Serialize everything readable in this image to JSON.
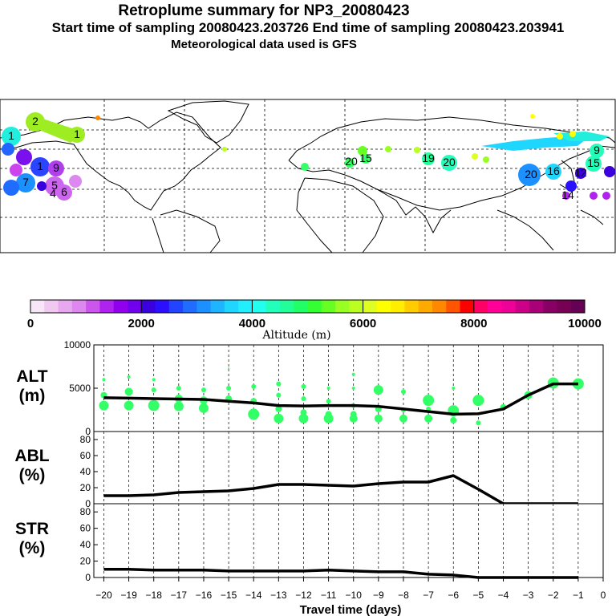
{
  "header": {
    "title": "Retroplume summary for NP3_20080423",
    "time_line": "Start time of sampling 20080423.203726     End time of sampling 20080423.203941",
    "met_line": "Meteorological data used is GFS"
  },
  "colorbar": {
    "label": "Altitude (m)",
    "ticks": [
      "0",
      "2000",
      "4000",
      "6000",
      "8000",
      "10000"
    ],
    "range": [
      0,
      10000
    ],
    "colors": [
      "#f7e6f7",
      "#f0c8f0",
      "#e8a8f0",
      "#dd88ee",
      "#cc55ee",
      "#b022ee",
      "#9000ee",
      "#7000ee",
      "#3a00dd",
      "#2a10ff",
      "#2244ff",
      "#1f6cff",
      "#1d90ff",
      "#1fb4ff",
      "#1fd6ff",
      "#22eeff",
      "#22ffee",
      "#22ffbb",
      "#22ff99",
      "#22ff66",
      "#33ff33",
      "#66ff22",
      "#99ff22",
      "#bbff22",
      "#ddff22",
      "#ffff00",
      "#ffee00",
      "#ffcc00",
      "#ffaa00",
      "#ff8800",
      "#ff5500",
      "#ff0000",
      "#ff0066",
      "#ff0099",
      "#ee0099",
      "#cc0088",
      "#aa0077",
      "#880066",
      "#770055",
      "#660055"
    ]
  },
  "map_labels": [
    {
      "t": "2",
      "c": "#9eed22"
    },
    {
      "t": "1",
      "c": "#9eed22"
    },
    {
      "t": "1",
      "c": "#22eedd"
    },
    {
      "t": "9",
      "c": "#b040ee"
    },
    {
      "t": "5",
      "c": "#cc66ee"
    },
    {
      "t": "6",
      "c": "#cc66ee"
    },
    {
      "t": "1",
      "c": "#2a60ff"
    },
    {
      "t": "7",
      "c": "#1fb4ff"
    },
    {
      "t": "4",
      "c": "#b040ee"
    },
    {
      "t": "19",
      "c": "#22ff99"
    },
    {
      "t": "20",
      "c": "#22ff99"
    },
    {
      "t": "20",
      "c": "#22ff99"
    },
    {
      "t": "15",
      "c": "#22ff99"
    },
    {
      "t": "20",
      "c": "#1d90ff"
    },
    {
      "t": "16",
      "c": "#1fd6ff"
    },
    {
      "t": "15",
      "c": "#1fd6ff"
    },
    {
      "t": "9",
      "c": "#22ffbb"
    },
    {
      "t": "12",
      "c": "#3a00dd"
    },
    {
      "t": "14",
      "c": "#b022ee"
    }
  ],
  "chart_data": [
    {
      "panel": "ALT",
      "type": "line",
      "ylabel": [
        "ALT",
        "(m)"
      ],
      "ylim": [
        0,
        10000
      ],
      "yticks": [
        "10000",
        "5000",
        "0"
      ],
      "x": [
        -20,
        -19,
        -18,
        -17,
        -16,
        -15,
        -14,
        -13,
        -12,
        -11,
        -10,
        -9,
        -8,
        -7,
        -6,
        -5,
        -4,
        -3,
        -2,
        -1
      ],
      "values": [
        3900,
        3850,
        3800,
        3750,
        3700,
        3500,
        3300,
        3000,
        2950,
        3000,
        3000,
        2900,
        2600,
        2300,
        2000,
        2050,
        2600,
        4200,
        5500,
        5500
      ],
      "scatter_color": "#33ff66",
      "scatter": [
        [
          -20,
          6000,
          2
        ],
        [
          -20,
          3000,
          6
        ],
        [
          -20,
          4200,
          4
        ],
        [
          -19,
          6300,
          2
        ],
        [
          -19,
          4600,
          5
        ],
        [
          -19,
          3000,
          6
        ],
        [
          -18,
          6000,
          2
        ],
        [
          -18,
          4800,
          3
        ],
        [
          -18,
          3000,
          7
        ],
        [
          -17,
          5000,
          3
        ],
        [
          -17,
          3800,
          5
        ],
        [
          -17,
          2900,
          6
        ],
        [
          -16,
          4800,
          3
        ],
        [
          -16,
          3600,
          5
        ],
        [
          -16,
          2700,
          6
        ],
        [
          -15,
          7300,
          1
        ],
        [
          -15,
          5000,
          3
        ],
        [
          -15,
          3800,
          4
        ],
        [
          -14,
          5200,
          3
        ],
        [
          -14,
          3500,
          4
        ],
        [
          -14,
          2000,
          7
        ],
        [
          -13,
          5500,
          3
        ],
        [
          -13,
          4200,
          3
        ],
        [
          -13,
          2600,
          4
        ],
        [
          -13,
          1500,
          6
        ],
        [
          -12,
          5200,
          3
        ],
        [
          -12,
          3800,
          3
        ],
        [
          -12,
          2200,
          4
        ],
        [
          -12,
          1500,
          6
        ],
        [
          -11,
          5000,
          2
        ],
        [
          -11,
          3500,
          3
        ],
        [
          -11,
          2000,
          4
        ],
        [
          -11,
          1500,
          6
        ],
        [
          -10,
          6600,
          2
        ],
        [
          -10,
          5000,
          2
        ],
        [
          -10,
          3000,
          3
        ],
        [
          -10,
          2000,
          4
        ],
        [
          -10,
          1500,
          5
        ],
        [
          -9,
          4800,
          6
        ],
        [
          -9,
          2600,
          4
        ],
        [
          -9,
          1500,
          5
        ],
        [
          -8,
          4600,
          3
        ],
        [
          -8,
          2500,
          3
        ],
        [
          -8,
          1500,
          5
        ],
        [
          -7,
          3600,
          7
        ],
        [
          -7,
          2600,
          3
        ],
        [
          -7,
          1500,
          5
        ],
        [
          -6,
          5000,
          2
        ],
        [
          -6,
          2400,
          7
        ],
        [
          -6,
          1300,
          4
        ],
        [
          -5,
          3600,
          7
        ],
        [
          -5,
          1000,
          3
        ],
        [
          -4,
          2800,
          4
        ],
        [
          -3,
          4200,
          5
        ],
        [
          -2,
          5600,
          7
        ],
        [
          -1,
          5500,
          7
        ]
      ]
    },
    {
      "panel": "ABL",
      "type": "line",
      "ylabel": [
        "ABL",
        "(%)"
      ],
      "ylim": [
        0,
        90
      ],
      "yticks": [
        "80",
        "60",
        "40",
        "20",
        "0"
      ],
      "x": [
        -20,
        -19,
        -18,
        -17,
        -16,
        -15,
        -14,
        -13,
        -12,
        -11,
        -10,
        -9,
        -8,
        -7,
        -6,
        -5,
        -4,
        -3,
        -2,
        -1
      ],
      "values": [
        10,
        10,
        11,
        14,
        15,
        16,
        19,
        24,
        24,
        23,
        22,
        25,
        27,
        27,
        35,
        18,
        0,
        0,
        0,
        0
      ]
    },
    {
      "panel": "STR",
      "type": "line",
      "ylabel": [
        "STR",
        "(%)"
      ],
      "ylim": [
        0,
        90
      ],
      "yticks": [
        "80",
        "60",
        "40",
        "20",
        "0"
      ],
      "x": [
        -20,
        -19,
        -18,
        -17,
        -16,
        -15,
        -14,
        -13,
        -12,
        -11,
        -10,
        -9,
        -8,
        -7,
        -6,
        -5,
        -4,
        -3,
        -2,
        -1
      ],
      "values": [
        10,
        10,
        9,
        9,
        9,
        8,
        8,
        8,
        8,
        9,
        8,
        7,
        7,
        4,
        3,
        0,
        0,
        0,
        0,
        0
      ]
    }
  ],
  "xaxis": {
    "ticks": [
      "−20",
      "−19",
      "−18",
      "−17",
      "−16",
      "−15",
      "−14",
      "−13",
      "−12",
      "−11",
      "−10",
      "−9",
      "−8",
      "−7",
      "−6",
      "−5",
      "−4",
      "−3",
      "−2",
      "−1",
      "0"
    ],
    "label": "Travel time (days)"
  }
}
